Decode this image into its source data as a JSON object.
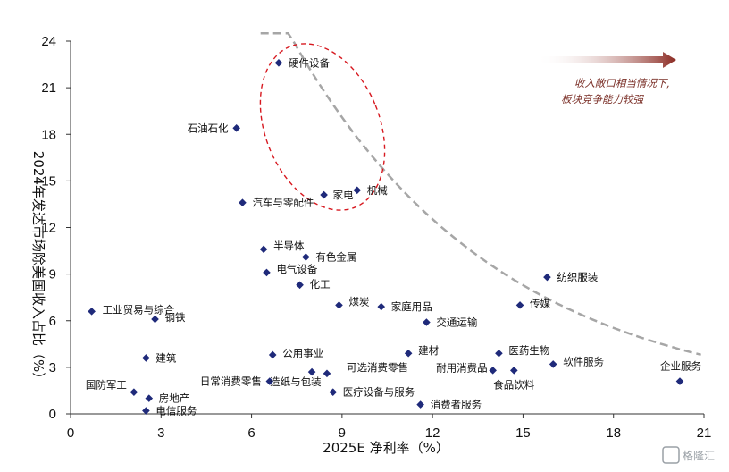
{
  "chart_data": {
    "type": "scatter",
    "xlabel": "2025E 净利率（%）",
    "ylabel": "2024年发达市场除美国收入占比（%）",
    "xlim": [
      0,
      21
    ],
    "ylim": [
      0,
      24
    ],
    "xticks": [
      "0",
      "3",
      "6",
      "9",
      "12",
      "15",
      "18",
      "21"
    ],
    "yticks": [
      "0",
      "3",
      "6",
      "9",
      "12",
      "15",
      "18",
      "21",
      "24"
    ],
    "grid": false,
    "marker_color": "#1f2a7a",
    "trend_color": "#a6a6a6",
    "ellipse_color": "#d71920",
    "arrow_color": "#8b2a22",
    "annotation": [
      "收入敞口相当情况下,",
      "板块竞争能力较强"
    ],
    "points": [
      {
        "name": "硬件设备",
        "x": 6.9,
        "y": 22.6
      },
      {
        "name": "石油石化",
        "x": 5.5,
        "y": 18.4
      },
      {
        "name": "家电",
        "x": 8.4,
        "y": 14.1
      },
      {
        "name": "机械",
        "x": 9.5,
        "y": 14.4
      },
      {
        "name": "汽车与零配件",
        "x": 5.7,
        "y": 13.6
      },
      {
        "name": "半导体",
        "x": 6.4,
        "y": 10.6
      },
      {
        "name": "有色金属",
        "x": 7.8,
        "y": 10.1
      },
      {
        "name": "电气设备",
        "x": 6.5,
        "y": 9.1
      },
      {
        "name": "化工",
        "x": 7.6,
        "y": 8.3
      },
      {
        "name": "纺织服装",
        "x": 15.8,
        "y": 8.8
      },
      {
        "name": "工业贸易与综合",
        "x": 0.7,
        "y": 6.6
      },
      {
        "name": "钢铁",
        "x": 2.8,
        "y": 6.1
      },
      {
        "name": "煤炭",
        "x": 8.9,
        "y": 7.0
      },
      {
        "name": "家庭用品",
        "x": 10.3,
        "y": 6.9
      },
      {
        "name": "传媒",
        "x": 14.9,
        "y": 7.0
      },
      {
        "name": "交通运输",
        "x": 11.8,
        "y": 5.9
      },
      {
        "name": "建筑",
        "x": 2.5,
        "y": 3.6
      },
      {
        "name": "公用事业",
        "x": 6.7,
        "y": 3.8
      },
      {
        "name": "建材",
        "x": 11.2,
        "y": 3.9
      },
      {
        "name": "医药生物",
        "x": 14.2,
        "y": 3.9
      },
      {
        "name": "可选消费零售",
        "x": 8.5,
        "y": 2.6
      },
      {
        "name": "软件服务",
        "x": 16.0,
        "y": 3.2
      },
      {
        "name": "耐用消费品",
        "x": 14.0,
        "y": 2.8
      },
      {
        "name": "食品饮料",
        "x": 14.7,
        "y": 2.8
      },
      {
        "name": "企业服务",
        "x": 20.2,
        "y": 2.1
      },
      {
        "name": "日常消费零售",
        "x": 6.6,
        "y": 2.1
      },
      {
        "name": "造纸与包装",
        "x": 8.0,
        "y": 2.7
      },
      {
        "name": "国防军工",
        "x": 2.1,
        "y": 1.4
      },
      {
        "name": "房地产",
        "x": 2.6,
        "y": 1.0
      },
      {
        "name": "医疗设备与服务",
        "x": 8.7,
        "y": 1.4
      },
      {
        "name": "电信服务",
        "x": 2.5,
        "y": 0.2
      },
      {
        "name": "消费者服务",
        "x": 11.6,
        "y": 0.6
      }
    ]
  },
  "watermark": "格隆汇"
}
